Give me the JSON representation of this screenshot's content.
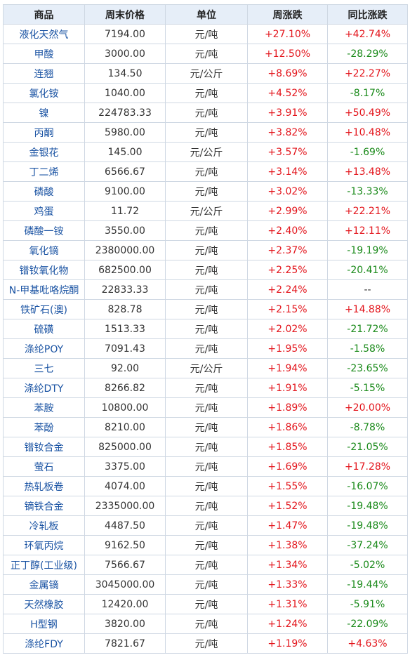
{
  "table": {
    "headers": [
      "商品",
      "周末价格",
      "单位",
      "周涨跌",
      "同比涨跌"
    ],
    "colors": {
      "up": "#e3151c",
      "down": "#1a8a1a",
      "name": "#1a53a3",
      "header_bg": "#e6eef8"
    },
    "rows": [
      {
        "name": "液化天然气",
        "price": "7194.00",
        "unit": "元/吨",
        "week": "+27.10%",
        "yoy": "+42.74%"
      },
      {
        "name": "甲酸",
        "price": "3000.00",
        "unit": "元/吨",
        "week": "+12.50%",
        "yoy": "-28.29%"
      },
      {
        "name": "连翘",
        "price": "134.50",
        "unit": "元/公斤",
        "week": "+8.69%",
        "yoy": "+22.27%"
      },
      {
        "name": "氯化铵",
        "price": "1040.00",
        "unit": "元/吨",
        "week": "+4.52%",
        "yoy": "-8.17%"
      },
      {
        "name": "镍",
        "price": "224783.33",
        "unit": "元/吨",
        "week": "+3.91%",
        "yoy": "+50.49%"
      },
      {
        "name": "丙酮",
        "price": "5980.00",
        "unit": "元/吨",
        "week": "+3.82%",
        "yoy": "+10.48%"
      },
      {
        "name": "金银花",
        "price": "145.00",
        "unit": "元/公斤",
        "week": "+3.57%",
        "yoy": "-1.69%"
      },
      {
        "name": "丁二烯",
        "price": "6566.67",
        "unit": "元/吨",
        "week": "+3.14%",
        "yoy": "+13.48%"
      },
      {
        "name": "磷酸",
        "price": "9100.00",
        "unit": "元/吨",
        "week": "+3.02%",
        "yoy": "-13.33%"
      },
      {
        "name": "鸡蛋",
        "price": "11.72",
        "unit": "元/公斤",
        "week": "+2.99%",
        "yoy": "+22.21%"
      },
      {
        "name": "磷酸一铵",
        "price": "3550.00",
        "unit": "元/吨",
        "week": "+2.40%",
        "yoy": "+12.11%"
      },
      {
        "name": "氧化镝",
        "price": "2380000.00",
        "unit": "元/吨",
        "week": "+2.37%",
        "yoy": "-19.19%"
      },
      {
        "name": "镨钕氧化物",
        "price": "682500.00",
        "unit": "元/吨",
        "week": "+2.25%",
        "yoy": "-20.41%"
      },
      {
        "name": "N-甲基吡咯烷酮",
        "price": "22833.33",
        "unit": "元/吨",
        "week": "+2.24%",
        "yoy": "--"
      },
      {
        "name": "铁矿石(澳)",
        "price": "828.78",
        "unit": "元/吨",
        "week": "+2.15%",
        "yoy": "+14.88%"
      },
      {
        "name": "硫磺",
        "price": "1513.33",
        "unit": "元/吨",
        "week": "+2.02%",
        "yoy": "-21.72%"
      },
      {
        "name": "涤纶POY",
        "price": "7091.43",
        "unit": "元/吨",
        "week": "+1.95%",
        "yoy": "-1.58%"
      },
      {
        "name": "三七",
        "price": "92.00",
        "unit": "元/公斤",
        "week": "+1.94%",
        "yoy": "-23.65%"
      },
      {
        "name": "涤纶DTY",
        "price": "8266.82",
        "unit": "元/吨",
        "week": "+1.91%",
        "yoy": "-5.15%"
      },
      {
        "name": "苯胺",
        "price": "10800.00",
        "unit": "元/吨",
        "week": "+1.89%",
        "yoy": "+20.00%"
      },
      {
        "name": "苯酚",
        "price": "8210.00",
        "unit": "元/吨",
        "week": "+1.86%",
        "yoy": "-8.78%"
      },
      {
        "name": "镨钕合金",
        "price": "825000.00",
        "unit": "元/吨",
        "week": "+1.85%",
        "yoy": "-21.05%"
      },
      {
        "name": "萤石",
        "price": "3375.00",
        "unit": "元/吨",
        "week": "+1.69%",
        "yoy": "+17.28%"
      },
      {
        "name": "热轧板卷",
        "price": "4074.00",
        "unit": "元/吨",
        "week": "+1.55%",
        "yoy": "-16.07%"
      },
      {
        "name": "镝铁合金",
        "price": "2335000.00",
        "unit": "元/吨",
        "week": "+1.52%",
        "yoy": "-19.48%"
      },
      {
        "name": "冷轧板",
        "price": "4487.50",
        "unit": "元/吨",
        "week": "+1.47%",
        "yoy": "-19.48%"
      },
      {
        "name": "环氧丙烷",
        "price": "9162.50",
        "unit": "元/吨",
        "week": "+1.38%",
        "yoy": "-37.24%"
      },
      {
        "name": "正丁醇(工业级)",
        "price": "7566.67",
        "unit": "元/吨",
        "week": "+1.34%",
        "yoy": "-5.02%"
      },
      {
        "name": "金属镝",
        "price": "3045000.00",
        "unit": "元/吨",
        "week": "+1.33%",
        "yoy": "-19.44%"
      },
      {
        "name": "天然橡胶",
        "price": "12420.00",
        "unit": "元/吨",
        "week": "+1.31%",
        "yoy": "-5.91%"
      },
      {
        "name": "H型钢",
        "price": "3820.00",
        "unit": "元/吨",
        "week": "+1.24%",
        "yoy": "-22.09%"
      },
      {
        "name": "涤纶FDY",
        "price": "7821.67",
        "unit": "元/吨",
        "week": "+1.19%",
        "yoy": "+4.63%"
      }
    ]
  }
}
